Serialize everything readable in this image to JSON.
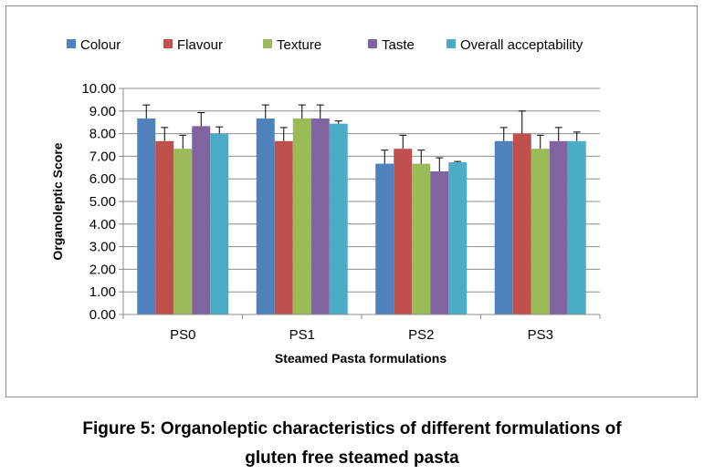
{
  "caption": {
    "line1": "Figure 5: Organoleptic characteristics of different formulations of",
    "line2": "gluten free steamed pasta"
  },
  "chart_data": {
    "type": "bar",
    "xlabel": "Steamed Pasta formulations",
    "ylabel": "Organoleptic Score",
    "ylim": [
      0,
      10
    ],
    "yticks": [
      "0.00",
      "1.00",
      "2.00",
      "3.00",
      "4.00",
      "5.00",
      "6.00",
      "7.00",
      "8.00",
      "9.00",
      "10.00"
    ],
    "grid": true,
    "legend_position": "top",
    "categories": [
      "PS0",
      "PS1",
      "PS2",
      "PS3"
    ],
    "series": [
      {
        "name": "Colour",
        "color": "#4F81BD",
        "values": [
          8.67,
          8.67,
          6.67,
          7.67
        ],
        "errors": [
          0.6,
          0.6,
          0.6,
          0.6
        ]
      },
      {
        "name": "Flavour",
        "color": "#C0504D",
        "values": [
          7.67,
          7.67,
          7.33,
          8.0
        ],
        "errors": [
          0.6,
          0.6,
          0.6,
          1.0
        ]
      },
      {
        "name": "Texture",
        "color": "#9BBB59",
        "values": [
          7.33,
          8.67,
          6.67,
          7.33
        ],
        "errors": [
          0.6,
          0.6,
          0.6,
          0.6
        ]
      },
      {
        "name": "Taste",
        "color": "#8064A2",
        "values": [
          8.33,
          8.67,
          6.33,
          7.67
        ],
        "errors": [
          0.6,
          0.6,
          0.6,
          0.6
        ]
      },
      {
        "name": "Overall acceptability",
        "color": "#4BACC6",
        "values": [
          8.0,
          8.44,
          6.73,
          7.67
        ],
        "errors": [
          0.3,
          0.12,
          0.04,
          0.4
        ]
      }
    ]
  }
}
